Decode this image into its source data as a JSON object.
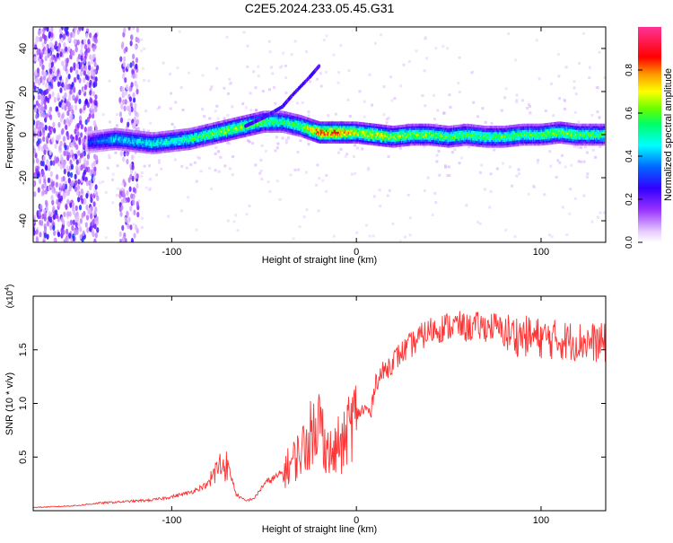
{
  "title": "C2E5.2024.233.05.45.G31",
  "chart_data": [
    {
      "type": "heatmap",
      "xlabel": "Height of straight line (km)",
      "ylabel": "Frequency (Hz)",
      "xlim": [
        -175,
        135
      ],
      "ylim": [
        -50,
        50
      ],
      "x_ticks": [
        -100,
        0,
        100
      ],
      "y_ticks": [
        -40,
        -20,
        0,
        20,
        40
      ],
      "colorbar": {
        "label": "Normalized spectral amplitude",
        "range": [
          0,
          1
        ],
        "ticks": [
          0.0,
          0.2,
          0.4,
          0.6,
          0.8
        ],
        "tick_labels": [
          "0.0",
          "0.2",
          "0.4",
          "0.6",
          "0.8"
        ],
        "colormap": [
          "#ffffff",
          "#cc99ff",
          "#6600cc",
          "#0000ff",
          "#00ffff",
          "#00ff00",
          "#ffff00",
          "#ff9900",
          "#ff0000",
          "#ff3399"
        ]
      },
      "ridge": [
        {
          "x": -140,
          "f": -3,
          "amp": 0.35
        },
        {
          "x": -130,
          "f": -2,
          "amp": 0.45
        },
        {
          "x": -120,
          "f": -3,
          "amp": 0.45
        },
        {
          "x": -110,
          "f": -4,
          "amp": 0.5
        },
        {
          "x": -100,
          "f": -3,
          "amp": 0.5
        },
        {
          "x": -90,
          "f": -2,
          "amp": 0.55
        },
        {
          "x": -80,
          "f": 0,
          "amp": 0.6
        },
        {
          "x": -70,
          "f": 2,
          "amp": 0.65
        },
        {
          "x": -60,
          "f": 4,
          "amp": 0.65
        },
        {
          "x": -50,
          "f": 6,
          "amp": 0.6
        },
        {
          "x": -40,
          "f": 6,
          "amp": 0.55
        },
        {
          "x": -30,
          "f": 4,
          "amp": 0.6
        },
        {
          "x": -20,
          "f": 1,
          "amp": 0.85
        },
        {
          "x": -10,
          "f": 1,
          "amp": 0.85
        },
        {
          "x": 0,
          "f": 1,
          "amp": 0.7
        },
        {
          "x": 10,
          "f": 0,
          "amp": 0.75
        },
        {
          "x": 20,
          "f": -1,
          "amp": 0.65
        },
        {
          "x": 30,
          "f": 0,
          "amp": 0.65
        },
        {
          "x": 40,
          "f": 0,
          "amp": 0.65
        },
        {
          "x": 50,
          "f": -1,
          "amp": 0.6
        },
        {
          "x": 60,
          "f": 0,
          "amp": 0.6
        },
        {
          "x": 70,
          "f": -1,
          "amp": 0.6
        },
        {
          "x": 80,
          "f": -1,
          "amp": 0.6
        },
        {
          "x": 90,
          "f": 0,
          "amp": 0.6
        },
        {
          "x": 100,
          "f": 0,
          "amp": 0.6
        },
        {
          "x": 110,
          "f": 1,
          "amp": 0.65
        },
        {
          "x": 120,
          "f": 0,
          "amp": 0.6
        },
        {
          "x": 130,
          "f": 0,
          "amp": 0.6
        }
      ],
      "branch": [
        {
          "x": -60,
          "f": 4
        },
        {
          "x": -50,
          "f": 8
        },
        {
          "x": -40,
          "f": 13
        },
        {
          "x": -35,
          "f": 18
        },
        {
          "x": -25,
          "f": 27
        },
        {
          "x": -20,
          "f": 32
        }
      ]
    },
    {
      "type": "line",
      "xlabel": "Height of straight line (km)",
      "ylabel": "SNR (10 * v/v)",
      "y_scale_label": "(x10^4)",
      "xlim": [
        -175,
        135
      ],
      "ylim": [
        0,
        20000
      ],
      "x_ticks": [
        -100,
        0,
        100
      ],
      "y_ticks": [
        5000,
        10000,
        15000
      ],
      "y_tick_labels": [
        "0.5",
        "1.0",
        "1.5"
      ],
      "color": "#ff3333",
      "series": [
        {
          "x": [
            -175,
            -160,
            -150,
            -140,
            -130,
            -120,
            -110,
            -100,
            -90,
            -80,
            -75,
            -70,
            -65,
            -60,
            -55,
            -50,
            -45,
            -40,
            -35,
            -30,
            -25,
            -22,
            -20,
            -18,
            -15,
            -12,
            -10,
            -8,
            -5,
            0,
            5,
            8,
            10,
            15,
            20,
            25,
            30,
            35,
            40,
            45,
            50,
            55,
            60,
            65,
            70,
            75,
            80,
            85,
            90,
            95,
            100,
            110,
            120,
            135
          ],
          "y": [
            300,
            400,
            500,
            700,
            800,
            900,
            1000,
            1300,
            1700,
            2500,
            4000,
            4500,
            1500,
            900,
            1200,
            2500,
            3000,
            3500,
            4500,
            5500,
            7000,
            9000,
            8000,
            7000,
            5500,
            5000,
            6500,
            5500,
            7500,
            9000,
            9500,
            9000,
            12000,
            13000,
            14000,
            14800,
            15500,
            16200,
            16800,
            17000,
            17200,
            17300,
            17000,
            17200,
            17100,
            17200,
            16600,
            16400,
            16300,
            16200,
            16100,
            15900,
            15800,
            15600
          ]
        }
      ]
    }
  ]
}
